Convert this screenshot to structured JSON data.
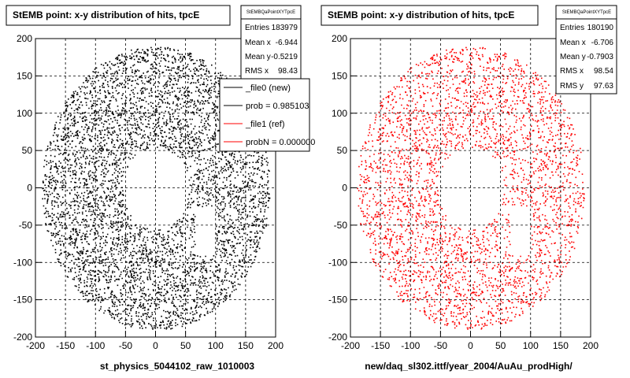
{
  "chart_data": [
    {
      "type": "scatter",
      "title": "StEMB point: x-y distribution of hits, tpcE",
      "xlabel": "st_physics_5044102_raw_1010003",
      "ylabel": "",
      "xlim": [
        -200,
        200
      ],
      "ylim": [
        -200,
        200
      ],
      "xticks": [
        "-200",
        "-150",
        "-100",
        "-50",
        "0",
        "50",
        "100",
        "150",
        "200"
      ],
      "yticks": [
        "200",
        "150",
        "100",
        "50",
        "0",
        "-50",
        "-100",
        "-150",
        "-200"
      ],
      "grid": true,
      "marker_color": "#000000",
      "stats": {
        "name": "StEMBQaPointXYTpcE",
        "rows": [
          {
            "label": "Entries",
            "value": "183979"
          },
          {
            "label": "Mean x",
            "value": "-6.944"
          },
          {
            "label": "Mean y",
            "value": "-0.5219"
          },
          {
            "label": "RMS x",
            "value": "98.43"
          }
        ]
      },
      "legend": [
        {
          "label": "_file0 (new)",
          "color": "#000000"
        },
        {
          "label": "prob = 0.985103",
          "color": "#000000"
        },
        {
          "label": "_file1 (ref)",
          "color": "#ff0000"
        },
        {
          "label": "probN = 0.000000",
          "color": "#ff0000"
        }
      ],
      "legend_position": "top-right",
      "distribution": {
        "inner_radius": 55,
        "outer_radius": 190,
        "center": [
          0,
          0
        ]
      }
    },
    {
      "type": "scatter",
      "title": "StEMB point: x-y distribution of hits, tpcE",
      "xlabel": "new/daq_sl302.ittf/year_2004/AuAu_prodHigh/",
      "ylabel": "",
      "xlim": [
        -200,
        200
      ],
      "ylim": [
        -200,
        200
      ],
      "xticks": [
        "-200",
        "-150",
        "-100",
        "-50",
        "0",
        "50",
        "100",
        "150",
        "200"
      ],
      "yticks": [
        "200",
        "150",
        "100",
        "50",
        "0",
        "-50",
        "-100",
        "-150",
        "-200"
      ],
      "grid": true,
      "marker_color": "#ff0000",
      "stats": {
        "name": "StEMBQaPointXYTpcE",
        "rows": [
          {
            "label": "Entries",
            "value": "180190"
          },
          {
            "label": "Mean x",
            "value": "-6.706"
          },
          {
            "label": "Mean y",
            "value": "-0.7903"
          },
          {
            "label": "RMS x",
            "value": "98.54"
          },
          {
            "label": "RMS y",
            "value": "97.63"
          }
        ]
      },
      "distribution": {
        "inner_radius": 55,
        "outer_radius": 190,
        "center": [
          0,
          0
        ]
      }
    }
  ]
}
